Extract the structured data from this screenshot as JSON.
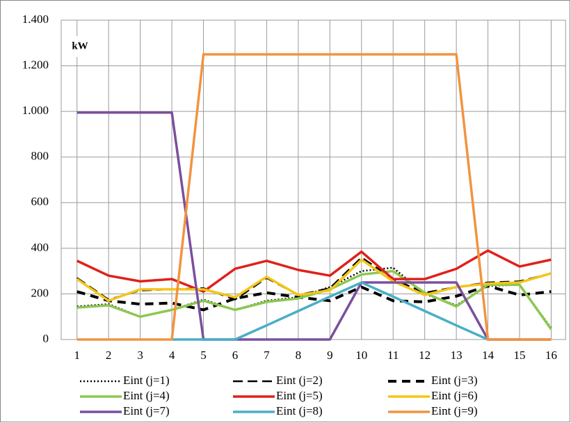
{
  "chart_data": {
    "type": "line",
    "unit_label": "kW",
    "categories": [
      "1",
      "2",
      "3",
      "4",
      "5",
      "6",
      "7",
      "8",
      "9",
      "10",
      "11",
      "12",
      "13",
      "14",
      "15",
      "16"
    ],
    "ylim": [
      0,
      1400
    ],
    "yticks": [
      0,
      200,
      400,
      600,
      800,
      {
        "value": 1000,
        "label": "1.000"
      },
      {
        "value": 1200,
        "label": "1.200"
      },
      {
        "value": 1400,
        "label": "1.400"
      }
    ],
    "grid": true,
    "legend": "bottom",
    "series": [
      {
        "name": "Eint (j=1)",
        "color": "#000000",
        "dash": "dotted",
        "values": [
          145,
          155,
          100,
          130,
          175,
          130,
          170,
          185,
          230,
          300,
          315,
          200,
          150,
          235,
          240,
          50
        ]
      },
      {
        "name": "Eint (j=2)",
        "color": "#000000",
        "dash": "long-dash",
        "values": [
          270,
          175,
          215,
          220,
          225,
          175,
          270,
          195,
          225,
          360,
          265,
          205,
          230,
          250,
          255,
          290
        ]
      },
      {
        "name": "Eint (j=3)",
        "color": "#000000",
        "dash": "thick-dash",
        "values": [
          210,
          170,
          155,
          160,
          130,
          180,
          205,
          185,
          170,
          230,
          170,
          165,
          190,
          235,
          195,
          210
        ]
      },
      {
        "name": "Eint (j=4)",
        "color": "#8cc850",
        "dash": "solid",
        "values": [
          140,
          150,
          100,
          130,
          170,
          130,
          165,
          180,
          220,
          285,
          300,
          205,
          145,
          240,
          240,
          45
        ]
      },
      {
        "name": "Eint (j=5)",
        "color": "#e0201a",
        "dash": "solid",
        "values": [
          345,
          280,
          255,
          265,
          210,
          310,
          345,
          305,
          280,
          385,
          265,
          265,
          310,
          390,
          320,
          350
        ]
      },
      {
        "name": "Eint (j=6)",
        "color": "#f5c518",
        "dash": "solid",
        "values": [
          265,
          170,
          220,
          220,
          220,
          185,
          275,
          195,
          215,
          350,
          255,
          195,
          230,
          245,
          250,
          290
        ]
      },
      {
        "name": "Eint (j=7)",
        "color": "#7a4f9e",
        "dash": "solid",
        "values": [
          995,
          995,
          995,
          995,
          0,
          0,
          0,
          0,
          0,
          250,
          250,
          250,
          250,
          0,
          0,
          0
        ]
      },
      {
        "name": "Eint (j=8)",
        "color": "#4aaec6",
        "dash": "solid",
        "values": [
          null,
          null,
          null,
          0,
          0,
          0,
          62,
          125,
          188,
          250,
          188,
          125,
          62,
          0,
          null,
          null
        ]
      },
      {
        "name": "Eint (j=9)",
        "color": "#f29340",
        "dash": "solid",
        "values": [
          0,
          0,
          0,
          0,
          1250,
          1250,
          1250,
          1250,
          1250,
          1250,
          1250,
          1250,
          1250,
          0,
          0,
          0
        ]
      }
    ]
  }
}
